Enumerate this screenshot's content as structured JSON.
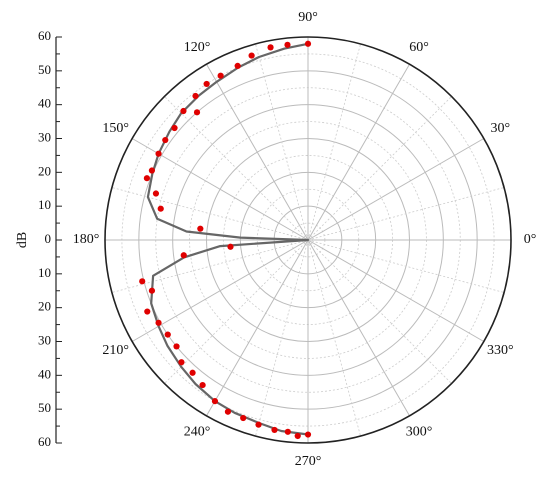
{
  "chart_data": {
    "type": "polar-line-scatter",
    "ylabel": "dB",
    "radial_ticks": [
      "60",
      "50",
      "40",
      "30",
      "20",
      "10",
      "0",
      "10",
      "20",
      "30",
      "40",
      "50",
      "60"
    ],
    "radial_range": [
      0,
      60
    ],
    "angle_ticks": [
      0,
      30,
      60,
      90,
      120,
      150,
      180,
      210,
      240,
      270,
      300,
      330
    ],
    "angle_tick_labels": [
      "0°",
      "30°",
      "60°",
      "90°",
      "120°",
      "150°",
      "180°",
      "210°",
      "240°",
      "270°",
      "300°",
      "330°"
    ],
    "grid": true,
    "colors": {
      "line": "#666666",
      "points": "#e00000",
      "grid_major": "#bbbbbb",
      "grid_minor": "#cccccc",
      "frame": "#222222"
    },
    "series": [
      {
        "style": "line",
        "points": [
          {
            "theta": 90,
            "r": 58
          },
          {
            "theta": 97,
            "r": 57
          },
          {
            "theta": 105,
            "r": 56
          },
          {
            "theta": 112,
            "r": 55
          },
          {
            "theta": 120,
            "r": 54
          },
          {
            "theta": 127,
            "r": 53.5
          },
          {
            "theta": 135,
            "r": 53
          },
          {
            "theta": 142,
            "r": 52
          },
          {
            "theta": 150,
            "r": 51
          },
          {
            "theta": 157,
            "r": 50
          },
          {
            "theta": 165,
            "r": 49
          },
          {
            "theta": 172,
            "r": 45
          },
          {
            "theta": 176,
            "r": 36
          },
          {
            "theta": 178,
            "r": 20
          },
          {
            "theta": 180,
            "r": 0
          },
          {
            "theta": 184,
            "r": 26
          },
          {
            "theta": 188,
            "r": 37
          },
          {
            "theta": 193,
            "r": 47
          },
          {
            "theta": 202,
            "r": 50
          },
          {
            "theta": 210,
            "r": 51
          },
          {
            "theta": 217,
            "r": 52
          },
          {
            "theta": 225,
            "r": 53
          },
          {
            "theta": 232,
            "r": 54
          },
          {
            "theta": 240,
            "r": 55
          },
          {
            "theta": 247,
            "r": 55.5
          },
          {
            "theta": 255,
            "r": 56
          },
          {
            "theta": 262,
            "r": 57
          },
          {
            "theta": 270,
            "r": 57.5
          }
        ]
      },
      {
        "style": "points",
        "points": [
          {
            "theta": 90,
            "r": 58
          },
          {
            "theta": 96,
            "r": 58
          },
          {
            "theta": 101,
            "r": 58
          },
          {
            "theta": 107,
            "r": 57
          },
          {
            "theta": 112,
            "r": 55.5
          },
          {
            "theta": 118,
            "r": 55
          },
          {
            "theta": 123,
            "r": 55
          },
          {
            "theta": 128,
            "r": 54
          },
          {
            "theta": 131,
            "r": 50
          },
          {
            "theta": 134,
            "r": 53
          },
          {
            "theta": 140,
            "r": 51.5
          },
          {
            "theta": 145,
            "r": 51.5
          },
          {
            "theta": 150,
            "r": 51
          },
          {
            "theta": 156,
            "r": 50.5
          },
          {
            "theta": 159,
            "r": 51
          },
          {
            "theta": 163,
            "r": 47
          },
          {
            "theta": 168,
            "r": 44.5
          },
          {
            "theta": 174,
            "r": 32
          },
          {
            "theta": 185,
            "r": 23
          },
          {
            "theta": 187,
            "r": 37
          },
          {
            "theta": 194,
            "r": 50.5
          },
          {
            "theta": 198,
            "r": 48.5
          },
          {
            "theta": 204,
            "r": 52
          },
          {
            "theta": 209,
            "r": 50.5
          },
          {
            "theta": 214,
            "r": 50
          },
          {
            "theta": 219,
            "r": 50
          },
          {
            "theta": 224,
            "r": 52
          },
          {
            "theta": 229,
            "r": 52
          },
          {
            "theta": 234,
            "r": 53
          },
          {
            "theta": 240,
            "r": 55
          },
          {
            "theta": 245,
            "r": 56
          },
          {
            "theta": 250,
            "r": 56
          },
          {
            "theta": 255,
            "r": 56.5
          },
          {
            "theta": 260,
            "r": 57
          },
          {
            "theta": 264,
            "r": 57
          },
          {
            "theta": 267,
            "r": 58
          },
          {
            "theta": 270,
            "r": 57.5
          }
        ]
      }
    ]
  }
}
